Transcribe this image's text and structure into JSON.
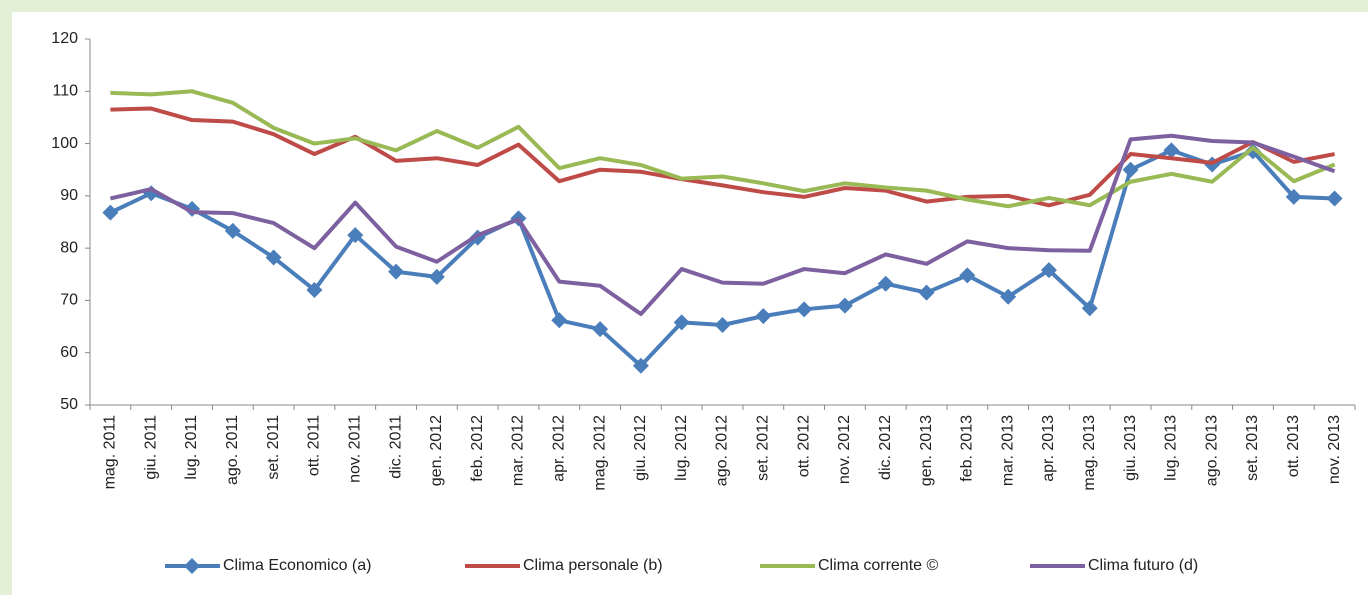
{
  "chart_data": {
    "type": "line",
    "categories": [
      "mag. 2011",
      "giu. 2011",
      "lug. 2011",
      "ago. 2011",
      "set. 2011",
      "ott. 2011",
      "nov. 2011",
      "dic. 2011",
      "gen. 2012",
      "feb. 2012",
      "mar. 2012",
      "apr. 2012",
      "mag. 2012",
      "giu. 2012",
      "lug. 2012",
      "ago. 2012",
      "set. 2012",
      "ott. 2012",
      "nov. 2012",
      "dic. 2012",
      "gen. 2013",
      "feb. 2013",
      "mar. 2013",
      "apr. 2013",
      "mag. 2013",
      "giu. 2013",
      "lug. 2013",
      "ago. 2013",
      "set. 2013",
      "ott. 2013",
      "nov. 2013"
    ],
    "series": [
      {
        "name": "Clima Economico (a)",
        "color": "#4a7ebb",
        "marker": "diamond",
        "values": [
          86.8,
          90.5,
          87.5,
          83.3,
          78.2,
          72,
          82.5,
          75.5,
          74.5,
          82,
          85.7,
          66.2,
          64.5,
          57.5,
          65.8,
          65.3,
          67,
          68.3,
          69,
          73.2,
          71.5,
          74.8,
          70.7,
          75.8,
          68.5,
          95,
          98.7,
          96,
          98.5,
          89.8,
          89.5
        ]
      },
      {
        "name": "Clima personale (b)",
        "color": "#be4b48",
        "values": [
          106.5,
          106.7,
          104.5,
          104.2,
          101.8,
          98,
          101.3,
          96.7,
          97.2,
          95.9,
          99.8,
          92.8,
          95,
          94.6,
          93.2,
          92,
          90.7,
          89.8,
          91.5,
          91,
          88.9,
          89.8,
          90,
          88.2,
          90.2,
          98,
          97.2,
          96.3,
          100.3,
          96.5,
          98
        ]
      },
      {
        "name": "Clima corrente ©",
        "color": "#98b954",
        "values": [
          109.7,
          109.4,
          110,
          107.8,
          103,
          100,
          101,
          98.7,
          102.4,
          99.2,
          103.2,
          95.3,
          97.2,
          95.9,
          93.3,
          93.7,
          92.4,
          90.9,
          92.4,
          91.6,
          91,
          89.3,
          88,
          89.6,
          88.2,
          92.7,
          94.2,
          92.7,
          99.2,
          92.8,
          96
        ]
      },
      {
        "name": "Clima futuro (d)",
        "color": "#7d60a0",
        "values": [
          89.5,
          91.3,
          86.9,
          86.7,
          84.8,
          80,
          88.7,
          80.3,
          77.4,
          82.5,
          85.5,
          73.6,
          72.8,
          67.4,
          76,
          73.4,
          73.2,
          76,
          75.2,
          78.8,
          77,
          81.3,
          80,
          79.6,
          79.5,
          100.8,
          101.5,
          100.5,
          100.2,
          97.5,
          94.7
        ]
      }
    ],
    "ylim": [
      50,
      120
    ],
    "yticks": [
      50,
      60,
      70,
      80,
      90,
      100,
      110,
      120
    ],
    "legend": "bottom"
  }
}
